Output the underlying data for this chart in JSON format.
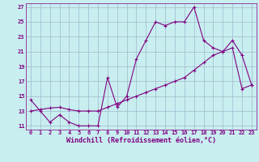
{
  "xlabel": "Windchill (Refroidissement éolien,°C)",
  "bg_color": "#c8eef0",
  "line_color": "#800080",
  "grid_color": "#a0b8cc",
  "line1_x": [
    0,
    1,
    2,
    3,
    4,
    5,
    6,
    7,
    8,
    9,
    10,
    11,
    12,
    13,
    14,
    15,
    16,
    17,
    18,
    19,
    20,
    21,
    22,
    23
  ],
  "line1_y": [
    14.5,
    13.0,
    11.5,
    12.5,
    11.5,
    11.0,
    11.0,
    11.0,
    17.5,
    13.5,
    15.0,
    20.0,
    22.5,
    25.0,
    24.5,
    25.0,
    25.0,
    27.0,
    22.5,
    21.5,
    21.0,
    22.5,
    20.5,
    16.5
  ],
  "line2_x": [
    0,
    1,
    2,
    3,
    4,
    5,
    6,
    7,
    8,
    9,
    10,
    11,
    12,
    13,
    14,
    15,
    16,
    17,
    18,
    19,
    20,
    21,
    22,
    23
  ],
  "line2_y": [
    13.0,
    13.2,
    13.4,
    13.5,
    13.2,
    13.0,
    13.0,
    13.0,
    13.5,
    14.0,
    14.5,
    15.0,
    15.5,
    16.0,
    16.5,
    17.0,
    17.5,
    18.5,
    19.5,
    20.5,
    21.0,
    21.5,
    16.0,
    16.5
  ],
  "xlim": [
    -0.5,
    23.5
  ],
  "ylim": [
    10.5,
    27.5
  ],
  "xticks": [
    0,
    1,
    2,
    3,
    4,
    5,
    6,
    7,
    8,
    9,
    10,
    11,
    12,
    13,
    14,
    15,
    16,
    17,
    18,
    19,
    20,
    21,
    22,
    23
  ],
  "yticks": [
    11,
    13,
    15,
    17,
    19,
    21,
    23,
    25,
    27
  ],
  "tick_fontsize": 5.0,
  "xlabel_fontsize": 6.0,
  "marker": "+"
}
